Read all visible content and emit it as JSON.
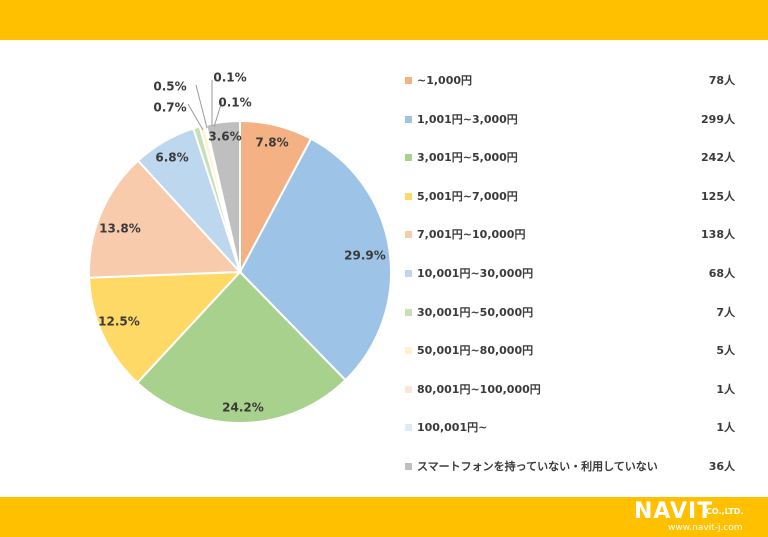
{
  "theme": {
    "band_color": "#FFC000"
  },
  "chart_data": {
    "type": "pie",
    "categories": [
      "~1,000円",
      "1,001円~3,000円",
      "3,001円~5,000円",
      "5,001円~7,000円",
      "7,001円~10,000円",
      "10,001円~30,000円",
      "30,001円~50,000円",
      "50,001円~80,000円",
      "80,001円~100,000円",
      "100,001円~",
      "スマートフォンを持っていない・利用していない"
    ],
    "counts": [
      "78人",
      "299人",
      "242人",
      "125人",
      "138人",
      "68人",
      "7人",
      "5人",
      "1人",
      "1人",
      "36人"
    ],
    "values": [
      7.8,
      29.9,
      24.2,
      12.5,
      13.8,
      6.8,
      0.7,
      0.5,
      0.1,
      0.1,
      3.6
    ],
    "labels": [
      "7.8%",
      "29.9%",
      "24.2%",
      "12.5%",
      "13.8%",
      "6.8%",
      "0.7%",
      "0.5%",
      "0.1%",
      "0.1%",
      "3.6%"
    ],
    "colors": [
      "#F4B183",
      "#9DC3E6",
      "#A9D18E",
      "#FFD966",
      "#F8CBAD",
      "#BDD7EE",
      "#C5E0B4",
      "#FFF2CC",
      "#FBE5D6",
      "#DEEBF7",
      "#BFBFBF"
    ],
    "legend_position": "right"
  },
  "logo": {
    "name": "NAVIT",
    "suffix": "CO.,LTD.",
    "url": "www.navit-j.com"
  }
}
